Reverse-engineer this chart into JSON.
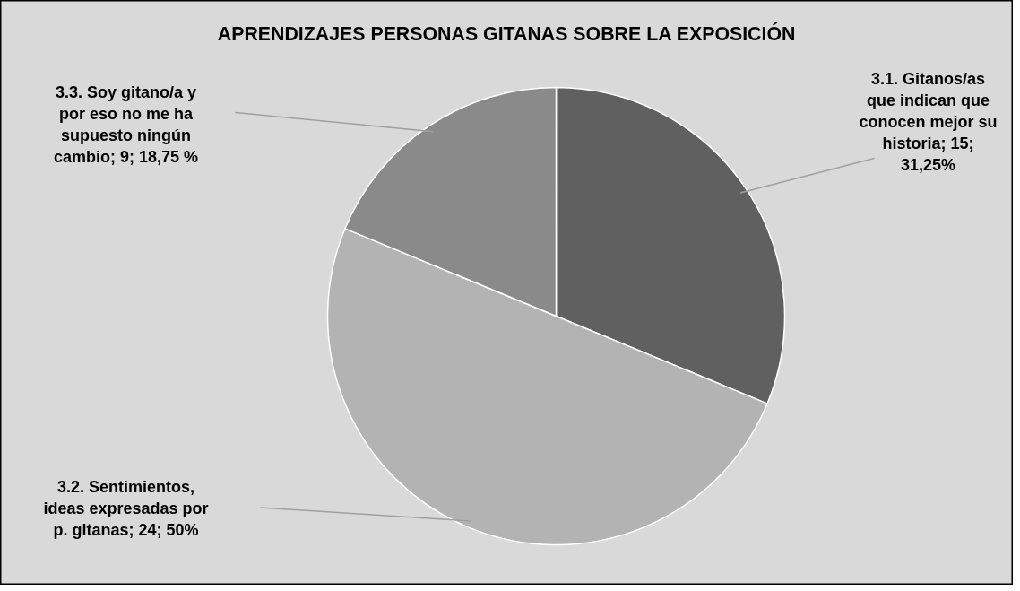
{
  "chart_data": {
    "type": "pie",
    "title": "APRENDIZAJES PERSONAS GITANAS SOBRE LA EXPOSICIÓN",
    "categories": [
      "3.1. Gitanos/as que indican que conocen mejor su historia; 15; 31,25%",
      "3.2. Sentimientos, ideas expresadas por p. gitanas; 24; 50%",
      "3.3. Soy gitano/a y por eso no me ha supuesto ningún cambio; 9; 18,75 %"
    ],
    "values": [
      15,
      24,
      9
    ],
    "colors": [
      "#606060",
      "#b3b3b3",
      "#8a8a8a"
    ]
  }
}
